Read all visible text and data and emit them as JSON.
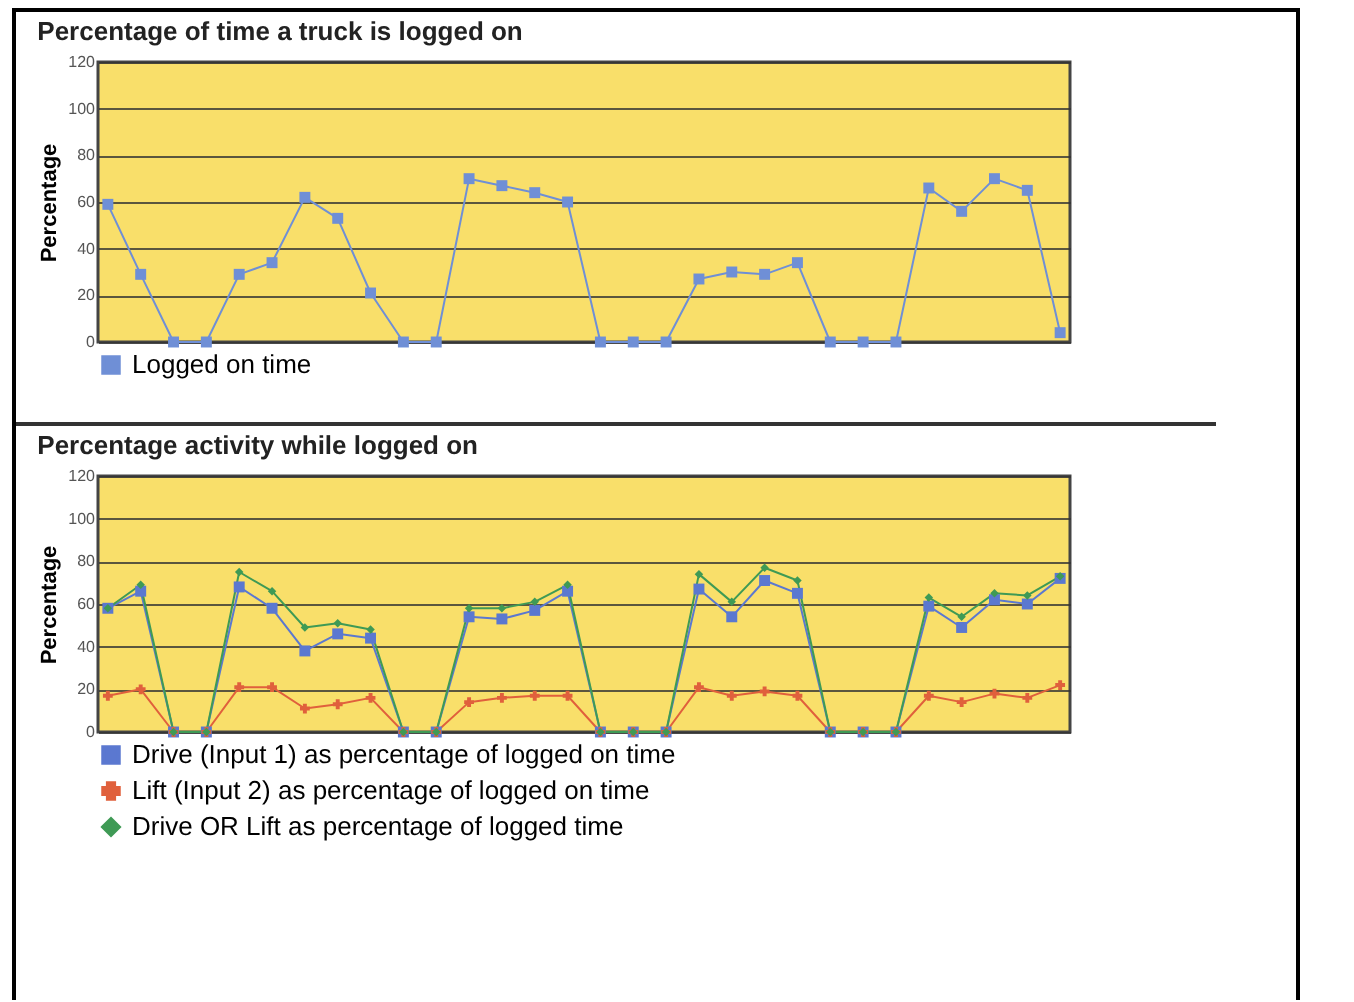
{
  "chart_data": [
    {
      "type": "line",
      "title": "Percentage of time a truck is logged on",
      "ylabel": "Percentage",
      "categories": [
        null,
        null,
        null,
        null,
        null,
        null,
        null,
        null,
        null,
        null,
        null,
        null,
        null,
        null,
        null,
        null,
        null,
        null,
        null,
        null,
        null,
        null,
        null,
        null,
        null,
        null,
        null,
        null,
        null,
        null
      ],
      "ylim": [
        0,
        120
      ],
      "yticks": [
        0,
        20,
        40,
        60,
        80,
        100,
        120
      ],
      "grid": "y",
      "legend": "bottom",
      "tick_labels": "y",
      "marker": "square",
      "series": [
        {
          "name": "Logged on time",
          "color": "#6f8fd6",
          "values": [
            59,
            29,
            0,
            0,
            29,
            34,
            62,
            53,
            21,
            0,
            0,
            70,
            67,
            64,
            60,
            0,
            0,
            0,
            27,
            30,
            29,
            34,
            0,
            0,
            0,
            66,
            56,
            70,
            65,
            4
          ]
        }
      ]
    },
    {
      "type": "line",
      "title": "Percentage activity while logged on",
      "ylabel": "Percentage",
      "categories": [
        null,
        null,
        null,
        null,
        null,
        null,
        null,
        null,
        null,
        null,
        null,
        null,
        null,
        null,
        null,
        null,
        null,
        null,
        null,
        null,
        null,
        null,
        null,
        null,
        null,
        null,
        null,
        null,
        null,
        null
      ],
      "ylim": [
        0,
        120
      ],
      "yticks": [
        0,
        20,
        40,
        60,
        80,
        100,
        120
      ],
      "grid": "y",
      "legend": "bottom",
      "tick_labels": "y",
      "series": [
        {
          "name": "Drive (Input 1) as percentage of logged on time",
          "color": "#5b78d0",
          "marker": "square",
          "values": [
            58,
            66,
            0,
            0,
            68,
            58,
            38,
            46,
            44,
            0,
            0,
            54,
            53,
            57,
            66,
            0,
            0,
            0,
            67,
            54,
            71,
            65,
            0,
            0,
            0,
            59,
            49,
            62,
            60,
            72
          ]
        },
        {
          "name": "Lift (Input 2) as percentage of logged on time",
          "color": "#e0603c",
          "marker": "cross",
          "values": [
            17,
            20,
            0,
            0,
            21,
            21,
            11,
            13,
            16,
            0,
            0,
            14,
            16,
            17,
            17,
            0,
            0,
            0,
            21,
            17,
            19,
            17,
            0,
            0,
            0,
            17,
            14,
            18,
            16,
            22
          ]
        },
        {
          "name": "Drive OR Lift as percentage of logged time",
          "color": "#3f9a55",
          "marker": "diamond",
          "values": [
            58,
            69,
            0,
            0,
            75,
            66,
            49,
            51,
            48,
            0,
            0,
            58,
            58,
            61,
            69,
            0,
            0,
            0,
            74,
            61,
            77,
            71,
            0,
            0,
            0,
            63,
            54,
            65,
            64,
            73
          ]
        }
      ]
    }
  ]
}
